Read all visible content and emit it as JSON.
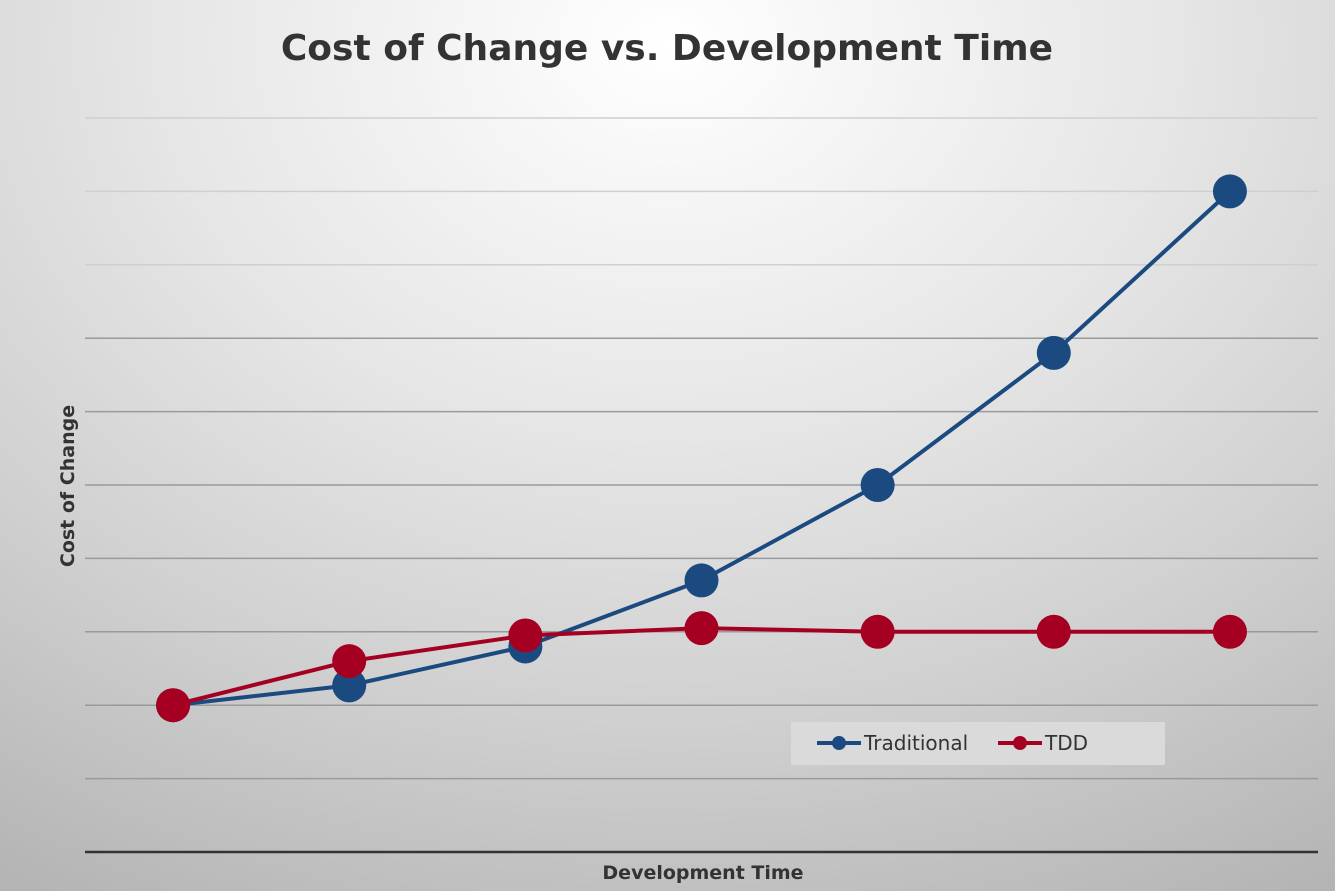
{
  "chart_data": {
    "type": "line",
    "title": "Cost of Change vs. Development Time",
    "xlabel": "Development Time",
    "ylabel": "Cost of Change",
    "x": [
      1,
      2,
      3,
      4,
      5,
      6,
      7
    ],
    "ylim": [
      0,
      10
    ],
    "grid": true,
    "tick_labels_shown": false,
    "legend_placement": "bottom-right",
    "series": [
      {
        "name": "Traditional",
        "color": "#1b4a80",
        "values": [
          2,
          2.27,
          2.8,
          3.7,
          5,
          6.8,
          9
        ]
      },
      {
        "name": "TDD",
        "color": "#a50021",
        "values": [
          2,
          2.6,
          2.95,
          3.05,
          3,
          3,
          3
        ]
      }
    ]
  }
}
